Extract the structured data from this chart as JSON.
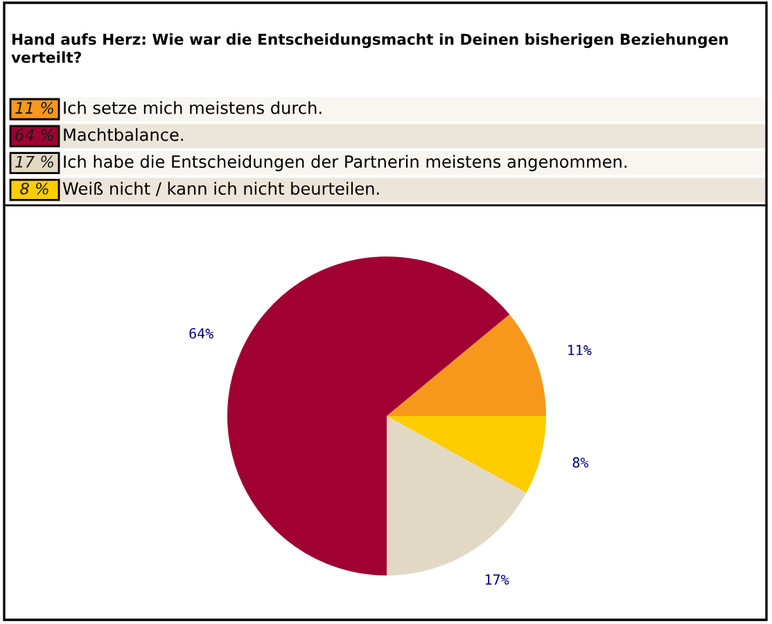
{
  "chart_data": {
    "type": "pie",
    "title": "Hand aufs Herz: Wie war die Entscheidungsmacht in Deinen bisherigen Beziehungen verteilt?",
    "categories": [
      "Ich setze mich meistens durch.",
      "Machtbalance.",
      "Ich habe die Entscheidungen der Partnerin meistens angenommen.",
      "Weiß nicht / kann ich nicht beurteilen."
    ],
    "values": [
      11,
      64,
      17,
      8
    ],
    "colors": [
      "#f7981d",
      "#a00032",
      "#e2d9c5",
      "#ffcc00"
    ],
    "value_labels": [
      "11%",
      "64%",
      "17%",
      "8%"
    ],
    "annotations": [
      "11 %",
      "64 %",
      "17 %",
      "8 %"
    ],
    "legend": "top"
  }
}
